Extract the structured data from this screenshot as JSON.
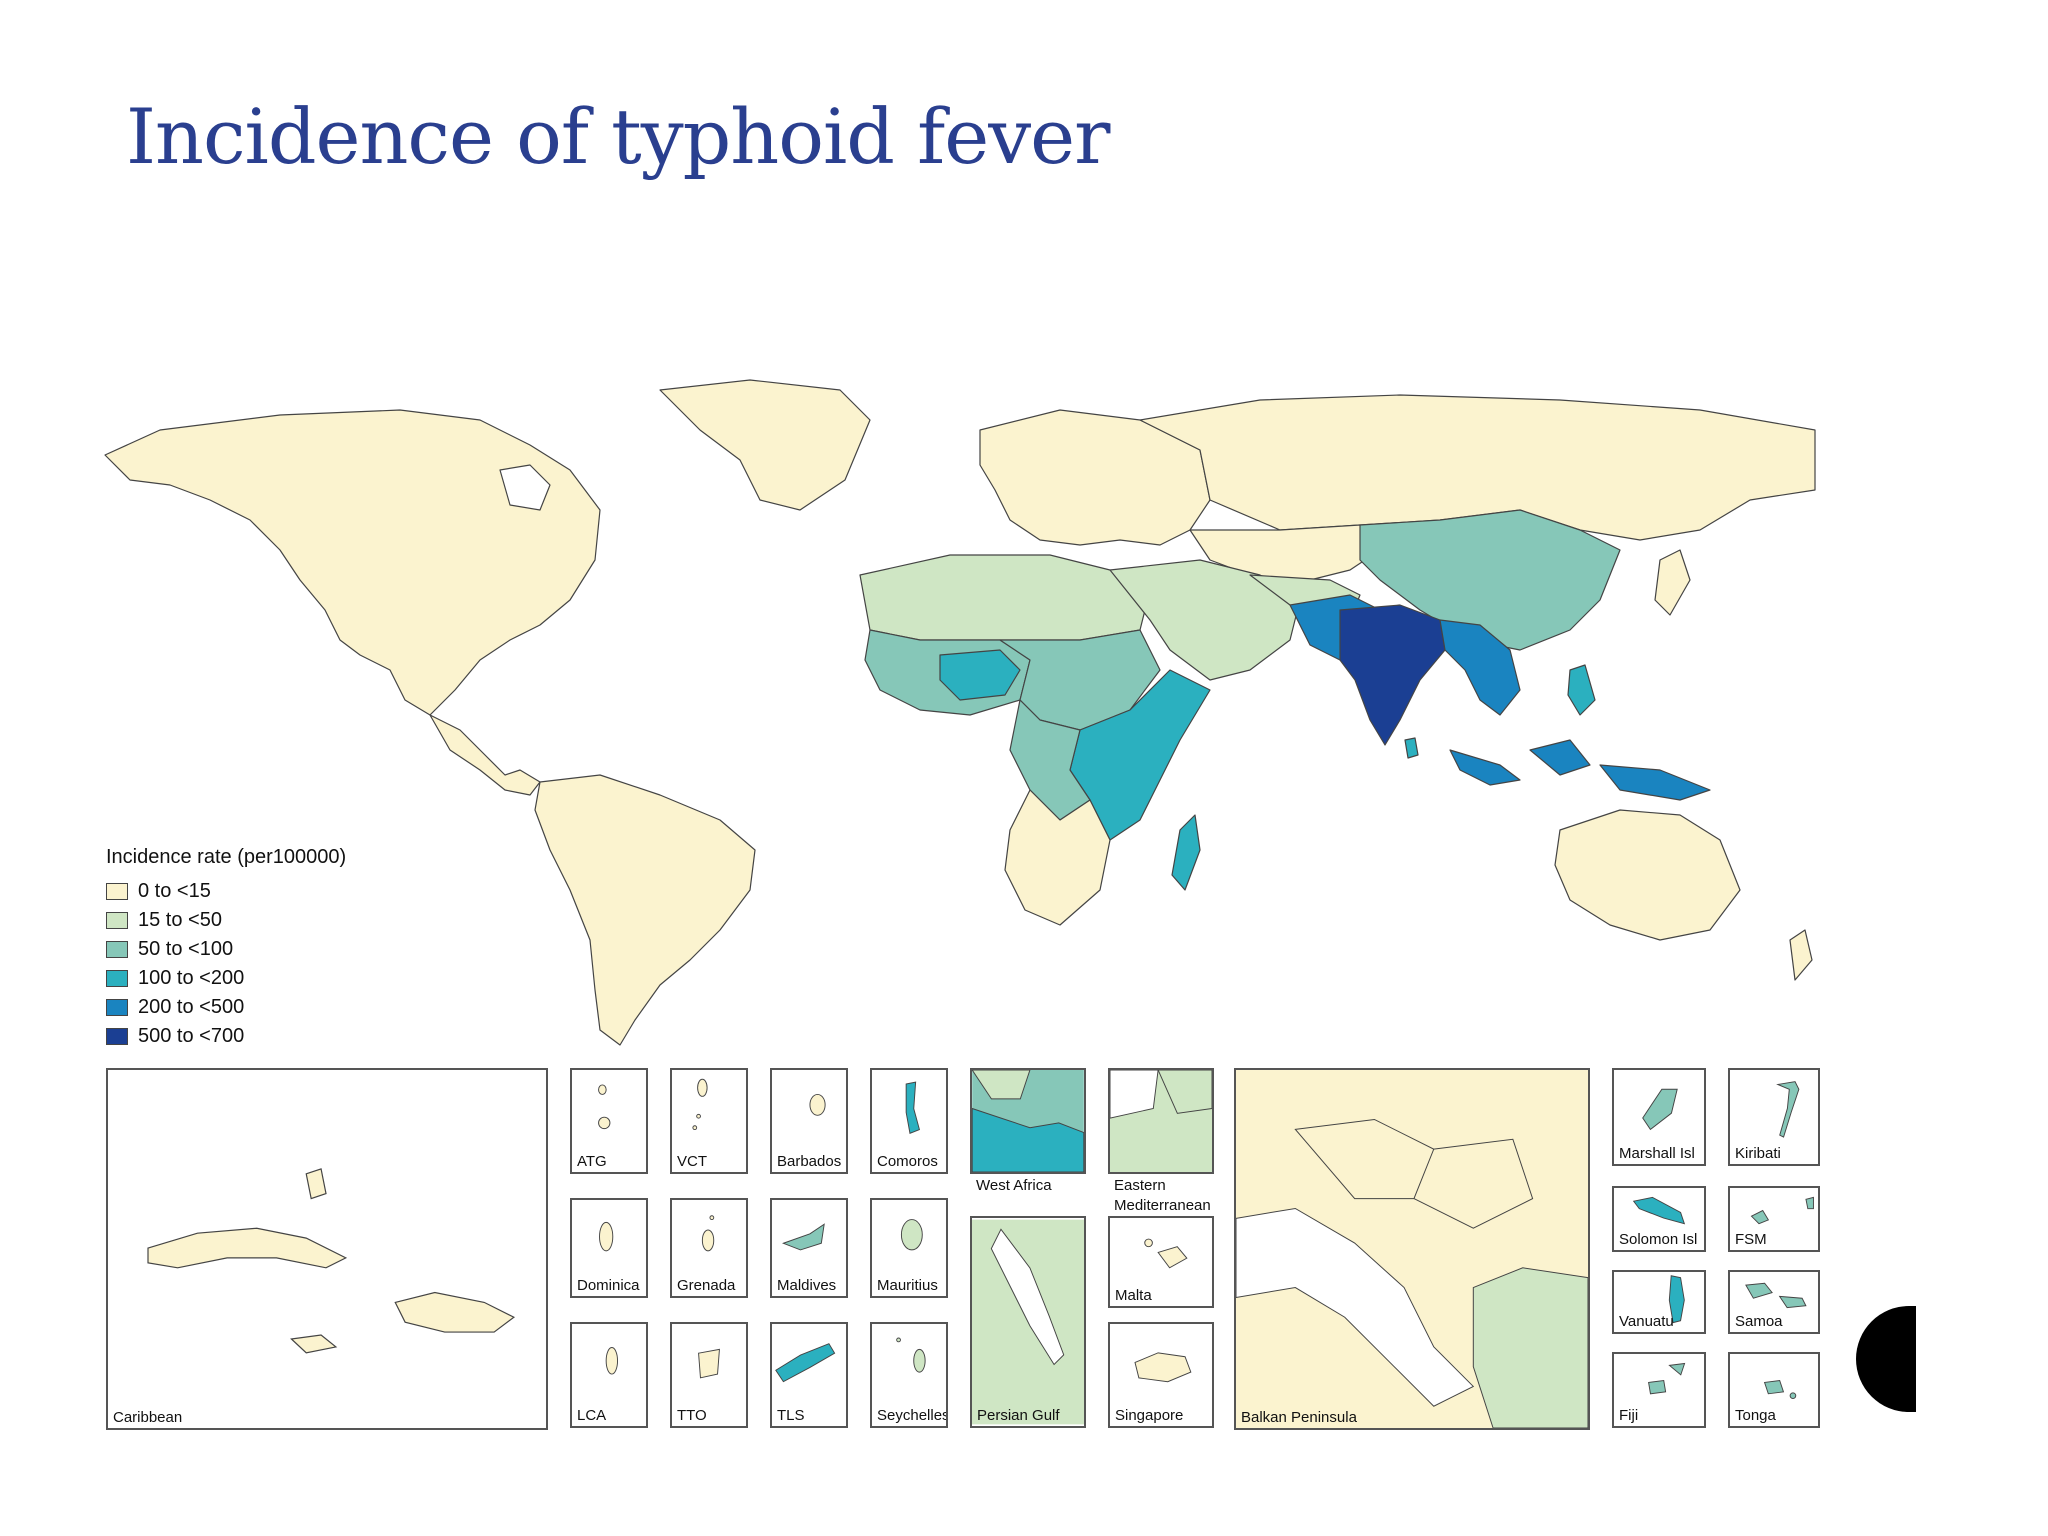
{
  "title": "Incidence of typhoid fever",
  "legend": {
    "title": "Incidence rate (per100000)",
    "items": [
      {
        "label": "0 to <15",
        "color": "#fbf3cf"
      },
      {
        "label": "15 to <50",
        "color": "#cfe6c4"
      },
      {
        "label": "50 to <100",
        "color": "#86c7b8"
      },
      {
        "label": "100 to <200",
        "color": "#2bb0bf"
      },
      {
        "label": "200 to <500",
        "color": "#1a84c0"
      },
      {
        "label": "500 to <700",
        "color": "#1b3f93"
      }
    ]
  },
  "insets": {
    "caribbean": "Caribbean",
    "atg": "ATG",
    "vct": "VCT",
    "barbados": "Barbados",
    "comoros": "Comoros",
    "west_africa": "West Africa",
    "eastern_med": "Eastern\nMediterranean",
    "dominica": "Dominica",
    "grenada": "Grenada",
    "maldives": "Maldives",
    "mauritius": "Mauritius",
    "malta": "Malta",
    "lca": "LCA",
    "tto": "TTO",
    "tls": "TLS",
    "seychelles": "Seychelles",
    "persian_gulf": "Persian Gulf",
    "singapore": "Singapore",
    "balkan": "Balkan Peninsula",
    "marshall": "Marshall Isl",
    "kiribati": "Kiribati",
    "solomon": "Solomon Isl",
    "fsm": "FSM",
    "vanuatu": "Vanuatu",
    "samoa": "Samoa",
    "fiji": "Fiji",
    "tonga": "Tonga"
  }
}
